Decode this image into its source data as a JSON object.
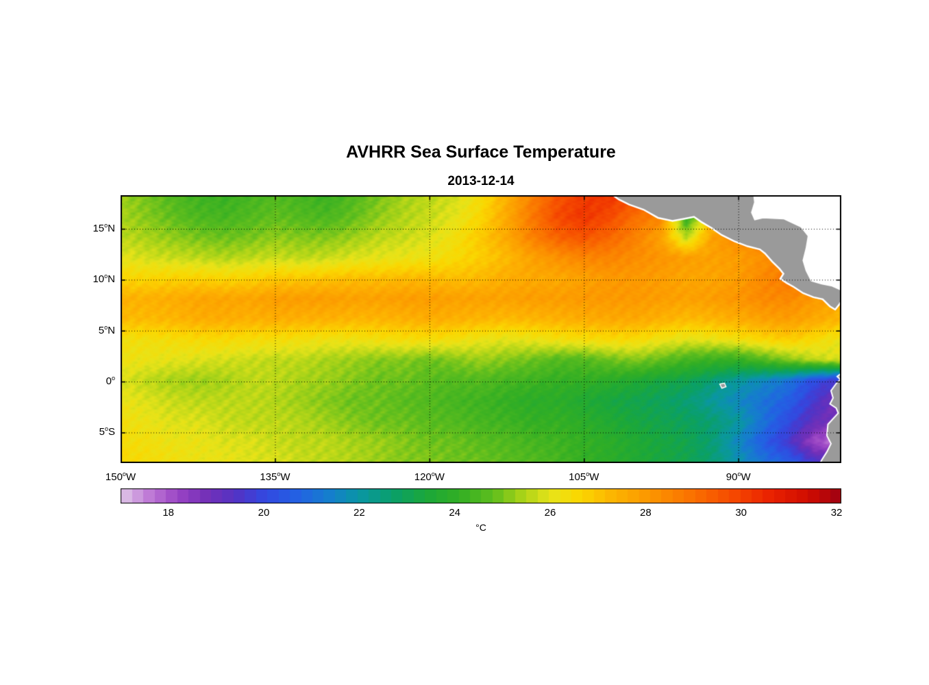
{
  "title": "AVHRR Sea Surface Temperature",
  "subtitle": "2013-12-14",
  "colorbar": {
    "label": "°C",
    "ticks": [
      18,
      20,
      22,
      24,
      26,
      28,
      30,
      32
    ],
    "range": [
      17,
      32.1
    ],
    "segments": 64,
    "colormap": [
      [
        17.0,
        "#e0c8e8"
      ],
      [
        17.6,
        "#bf7ad6"
      ],
      [
        18.2,
        "#9a44c4"
      ],
      [
        18.8,
        "#7430b8"
      ],
      [
        19.4,
        "#5433c4"
      ],
      [
        20.0,
        "#3448e0"
      ],
      [
        20.7,
        "#2362e4"
      ],
      [
        21.4,
        "#1580cc"
      ],
      [
        22.0,
        "#0a97a4"
      ],
      [
        22.7,
        "#0aa06a"
      ],
      [
        23.4,
        "#1ca83a"
      ],
      [
        24.1,
        "#33af24"
      ],
      [
        24.8,
        "#5fbe1e"
      ],
      [
        25.4,
        "#a8d318"
      ],
      [
        26.0,
        "#e8e41a"
      ],
      [
        26.6,
        "#fbd801"
      ],
      [
        27.3,
        "#fdb501"
      ],
      [
        28.2,
        "#fc9200"
      ],
      [
        29.0,
        "#fa7000"
      ],
      [
        29.8,
        "#f64a00"
      ],
      [
        30.6,
        "#ea2200"
      ],
      [
        31.4,
        "#d00d00"
      ],
      [
        32.1,
        "#9e0014"
      ]
    ]
  },
  "axes": {
    "x_ticks": [
      {
        "num": "150",
        "hem": "W",
        "lon": -150
      },
      {
        "num": "135",
        "hem": "W",
        "lon": -135
      },
      {
        "num": "120",
        "hem": "W",
        "lon": -120
      },
      {
        "num": "105",
        "hem": "W",
        "lon": -105
      },
      {
        "num": "90",
        "hem": "W",
        "lon": -90
      }
    ],
    "y_ticks": [
      {
        "num": "15",
        "hem": "N",
        "lat": 15
      },
      {
        "num": "10",
        "hem": "N",
        "lat": 10
      },
      {
        "num": "5",
        "hem": "N",
        "lat": 5
      },
      {
        "num": "0",
        "hem": "",
        "lat": 0
      },
      {
        "num": "5",
        "hem": "S",
        "lat": -5
      }
    ],
    "grid_lons": [
      -135,
      -120,
      -105,
      -90
    ],
    "grid_lats": [
      15,
      10,
      5,
      0,
      -5
    ]
  },
  "chart_data": {
    "type": "heatmap",
    "title": "AVHRR Sea Surface Temperature",
    "subtitle": "2013-12-14",
    "units": "°C",
    "lon_range": [
      -150,
      -80
    ],
    "lat_range": [
      -8,
      18.3
    ],
    "land_color": "#9a9a9a",
    "coast_color": "#ffffff",
    "lons": [
      -150,
      -147.5,
      -145,
      -142.5,
      -140,
      -137.5,
      -135,
      -132.5,
      -130,
      -127.5,
      -125,
      -122.5,
      -120,
      -117.5,
      -115,
      -112.5,
      -110,
      -107.5,
      -105,
      -102.5,
      -100,
      -97.5,
      -95,
      -92.5,
      -90,
      -87.5,
      -85,
      -82.5,
      -80
    ],
    "lats": [
      18,
      16,
      14,
      12,
      10,
      8,
      6,
      4,
      2,
      0,
      -2,
      -4,
      -6,
      -8
    ],
    "sst": [
      [
        25.3,
        25.0,
        24.6,
        24.3,
        24.2,
        24.4,
        24.6,
        24.4,
        24.2,
        24.6,
        25.0,
        25.4,
        25.6,
        25.8,
        26.4,
        27.4,
        28.6,
        29.6,
        30.1,
        30.2,
        29.8,
        29.2,
        28.8,
        28.6,
        28.6,
        28.8,
        29.0,
        29.0,
        29.0
      ],
      [
        25.4,
        25.1,
        24.8,
        24.5,
        24.4,
        24.6,
        24.8,
        24.6,
        24.5,
        24.8,
        25.2,
        25.5,
        25.7,
        26.0,
        26.6,
        27.6,
        28.8,
        29.8,
        30.2,
        29.8,
        29.0,
        28.5,
        24.0,
        27.0,
        28.5,
        28.8,
        28.8,
        28.8,
        28.8
      ],
      [
        25.6,
        25.4,
        25.2,
        25.0,
        24.9,
        25.0,
        25.2,
        25.1,
        25.1,
        25.3,
        25.6,
        25.7,
        25.9,
        26.3,
        26.9,
        27.6,
        28.6,
        29.3,
        29.6,
        29.2,
        28.6,
        27.8,
        25.5,
        27.8,
        28.4,
        28.6,
        28.6,
        28.6,
        28.6
      ],
      [
        26.0,
        25.8,
        25.7,
        25.6,
        25.5,
        25.6,
        25.7,
        25.6,
        25.7,
        25.9,
        26.0,
        26.1,
        26.2,
        26.5,
        26.8,
        27.2,
        27.8,
        28.2,
        28.5,
        28.5,
        28.3,
        28.1,
        27.9,
        27.8,
        27.9,
        28.2,
        28.5,
        28.5,
        28.4
      ],
      [
        26.6,
        26.6,
        26.7,
        26.7,
        26.6,
        26.7,
        26.9,
        26.9,
        27.0,
        27.1,
        27.1,
        27.2,
        27.2,
        27.1,
        27.2,
        27.5,
        27.6,
        27.6,
        27.8,
        28.0,
        28.0,
        27.9,
        27.7,
        27.7,
        27.9,
        28.4,
        28.8,
        29.0,
        28.8
      ],
      [
        27.4,
        27.4,
        27.5,
        27.7,
        27.7,
        27.7,
        27.9,
        27.9,
        27.9,
        27.8,
        27.8,
        27.9,
        27.9,
        27.8,
        27.8,
        27.8,
        27.9,
        27.9,
        28.0,
        28.0,
        28.0,
        27.9,
        27.8,
        27.9,
        28.1,
        28.4,
        28.4,
        28.0,
        27.6
      ],
      [
        27.2,
        27.2,
        27.3,
        27.5,
        27.5,
        27.4,
        27.5,
        27.4,
        27.4,
        27.3,
        27.3,
        27.4,
        27.5,
        27.4,
        27.3,
        27.2,
        27.3,
        27.4,
        27.5,
        27.6,
        27.6,
        27.4,
        27.2,
        27.3,
        27.5,
        27.8,
        27.9,
        27.6,
        27.3
      ],
      [
        26.3,
        26.3,
        26.4,
        26.5,
        26.5,
        26.4,
        26.4,
        26.3,
        26.2,
        26.2,
        26.3,
        26.4,
        26.4,
        26.3,
        26.1,
        26.0,
        26.1,
        26.3,
        26.4,
        26.5,
        26.5,
        26.2,
        26.0,
        26.1,
        26.3,
        26.6,
        26.8,
        26.5,
        26.1
      ],
      [
        26.2,
        26.1,
        26.0,
        25.9,
        25.8,
        25.7,
        25.6,
        25.6,
        25.4,
        25.3,
        25.1,
        25.1,
        24.9,
        25.1,
        25.3,
        25.1,
        24.9,
        24.6,
        24.6,
        24.9,
        25.1,
        24.8,
        24.4,
        24.2,
        24.1,
        24.6,
        25.1,
        25.6,
        25.9
      ],
      [
        25.9,
        25.6,
        25.4,
        25.3,
        25.4,
        25.6,
        25.6,
        25.4,
        25.3,
        25.1,
        24.9,
        24.9,
        24.7,
        24.6,
        24.6,
        24.4,
        24.3,
        24.1,
        24.1,
        23.9,
        23.6,
        23.3,
        23.1,
        22.6,
        22.1,
        21.6,
        21.1,
        20.1,
        19.6
      ],
      [
        26.1,
        25.9,
        25.7,
        25.6,
        25.6,
        25.6,
        25.5,
        25.3,
        25.1,
        24.9,
        24.9,
        24.7,
        24.6,
        24.4,
        24.3,
        24.1,
        23.9,
        23.9,
        23.6,
        23.3,
        23.1,
        22.9,
        22.6,
        22.1,
        21.6,
        21.1,
        20.6,
        19.6,
        18.6
      ],
      [
        26.3,
        26.1,
        25.9,
        25.9,
        25.7,
        25.6,
        25.6,
        25.5,
        25.3,
        25.1,
        24.9,
        24.9,
        24.7,
        24.6,
        24.4,
        24.3,
        24.1,
        24.1,
        23.9,
        23.6,
        23.3,
        23.1,
        22.9,
        22.6,
        22.1,
        21.1,
        20.1,
        19.1,
        18.6
      ],
      [
        26.4,
        26.3,
        26.1,
        26.1,
        25.9,
        25.9,
        25.7,
        25.6,
        25.6,
        25.4,
        25.3,
        25.1,
        24.9,
        24.9,
        24.7,
        24.6,
        24.4,
        24.3,
        24.1,
        23.9,
        23.6,
        23.3,
        23.1,
        22.6,
        21.6,
        20.6,
        19.6,
        18.1,
        17.6
      ],
      [
        26.6,
        26.4,
        26.3,
        26.1,
        26.1,
        25.9,
        25.9,
        25.7,
        25.6,
        25.5,
        25.3,
        25.1,
        25.1,
        24.9,
        24.9,
        24.7,
        24.6,
        24.4,
        24.1,
        23.9,
        23.6,
        23.3,
        23.1,
        22.6,
        21.9,
        21.1,
        20.6,
        19.6,
        19.1
      ]
    ],
    "land": {
      "coast_pacific": [
        [
          -102.3,
          18.4
        ],
        [
          -101.6,
          17.9
        ],
        [
          -100.6,
          17.4
        ],
        [
          -99.2,
          16.9
        ],
        [
          -97.8,
          16.1
        ],
        [
          -96.4,
          15.8
        ],
        [
          -95.3,
          16.0
        ],
        [
          -94.3,
          16.2
        ],
        [
          -93.6,
          15.7
        ],
        [
          -92.6,
          15.1
        ],
        [
          -91.6,
          14.4
        ],
        [
          -90.4,
          13.8
        ],
        [
          -89.1,
          13.3
        ],
        [
          -87.9,
          13.0
        ],
        [
          -87.4,
          12.6
        ],
        [
          -86.7,
          11.8
        ],
        [
          -86.0,
          11.1
        ],
        [
          -85.6,
          10.6
        ],
        [
          -85.9,
          10.1
        ],
        [
          -85.3,
          9.7
        ],
        [
          -84.6,
          9.3
        ],
        [
          -83.7,
          8.7
        ],
        [
          -82.7,
          8.3
        ],
        [
          -81.8,
          8.1
        ],
        [
          -81.1,
          7.4
        ],
        [
          -80.6,
          7.1
        ],
        [
          -80.2,
          7.6
        ],
        [
          -80.0,
          7.9
        ]
      ],
      "central_america_east": [
        [
          -80.0,
          9.0
        ],
        [
          -80.9,
          9.4
        ],
        [
          -81.9,
          9.6
        ],
        [
          -82.9,
          9.9
        ],
        [
          -83.4,
          10.9
        ],
        [
          -83.7,
          11.9
        ],
        [
          -83.4,
          13.1
        ],
        [
          -83.2,
          14.3
        ],
        [
          -83.9,
          15.2
        ],
        [
          -85.6,
          16.0
        ],
        [
          -87.6,
          16.1
        ],
        [
          -88.4,
          15.9
        ],
        [
          -88.7,
          16.6
        ],
        [
          -88.4,
          17.6
        ],
        [
          -88.5,
          18.4
        ]
      ],
      "south_america": [
        [
          -80.0,
          0.8
        ],
        [
          -80.4,
          0.5
        ],
        [
          -80.1,
          0.2
        ],
        [
          -80.5,
          -0.2
        ],
        [
          -81.0,
          -0.9
        ],
        [
          -80.8,
          -1.6
        ],
        [
          -81.1,
          -2.2
        ],
        [
          -80.5,
          -2.6
        ],
        [
          -80.3,
          -3.1
        ],
        [
          -81.3,
          -4.2
        ],
        [
          -81.4,
          -5.3
        ],
        [
          -81.0,
          -6.1
        ],
        [
          -81.4,
          -6.9
        ],
        [
          -81.9,
          -7.7
        ],
        [
          -82.1,
          -8.1
        ],
        [
          -80.0,
          -8.1
        ]
      ],
      "galapagos": [
        [
          -91.8,
          -0.25
        ],
        [
          -91.35,
          -0.15
        ],
        [
          -91.2,
          -0.5
        ],
        [
          -91.6,
          -0.65
        ]
      ]
    }
  }
}
